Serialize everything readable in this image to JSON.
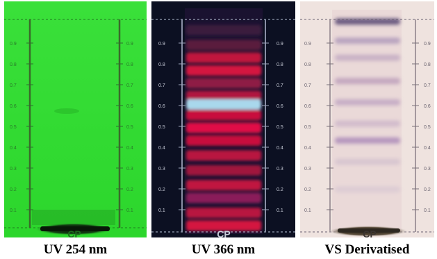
{
  "panels": [
    {
      "caption": "UV 254 nm",
      "track_label": "CP",
      "background": "#33e033",
      "scale_labels": [
        "0.9",
        "0.8",
        "0.7",
        "0.6",
        "0.5",
        "0.4",
        "0.3",
        "0.2",
        "0.1"
      ]
    },
    {
      "caption": "UV 366 nm",
      "track_label": "CP",
      "background": "#0c1022",
      "scale_labels": [
        "0.9",
        "0.8",
        "0.7",
        "0.6",
        "0.5",
        "0.4",
        "0.3",
        "0.2",
        "0.1"
      ],
      "bands": [
        {
          "rf": 0.95,
          "color": "#3a1b3e"
        },
        {
          "rf": 0.88,
          "color": "#5a1a3c"
        },
        {
          "rf": 0.82,
          "color": "#c0163c"
        },
        {
          "rf": 0.76,
          "color": "#d41440"
        },
        {
          "rf": 0.7,
          "color": "#8e1a44"
        },
        {
          "rf": 0.64,
          "color": "#b01840"
        },
        {
          "rf": 0.6,
          "color": "#a9d8ec"
        },
        {
          "rf": 0.55,
          "color": "#c8103c"
        },
        {
          "rf": 0.49,
          "color": "#e01046"
        },
        {
          "rf": 0.43,
          "color": "#c8103c"
        },
        {
          "rf": 0.36,
          "color": "#b81440"
        },
        {
          "rf": 0.29,
          "color": "#a0183e"
        },
        {
          "rf": 0.22,
          "color": "#c01440"
        },
        {
          "rf": 0.16,
          "color": "#8a1c5a"
        },
        {
          "rf": 0.09,
          "color": "#b81640"
        },
        {
          "rf": 0.03,
          "color": "#d41440"
        }
      ]
    },
    {
      "caption": "VS Derivatised",
      "track_label": "CP",
      "background": "#efe3df",
      "scale_labels": [
        "0.9",
        "0.8",
        "0.7",
        "0.6",
        "0.5",
        "0.4",
        "0.3",
        "0.2",
        "0.1"
      ],
      "bands": [
        {
          "rf": 0.99,
          "color": "#6a5a80"
        },
        {
          "rf": 0.9,
          "color": "#b9a4c0"
        },
        {
          "rf": 0.82,
          "color": "#c9b2c6"
        },
        {
          "rf": 0.71,
          "color": "#c4a8c0"
        },
        {
          "rf": 0.61,
          "color": "#c7aec6"
        },
        {
          "rf": 0.51,
          "color": "#d2bccc"
        },
        {
          "rf": 0.43,
          "color": "#b596be"
        },
        {
          "rf": 0.33,
          "color": "#d8c6d0"
        },
        {
          "rf": 0.2,
          "color": "#ddccd4"
        }
      ]
    }
  ]
}
